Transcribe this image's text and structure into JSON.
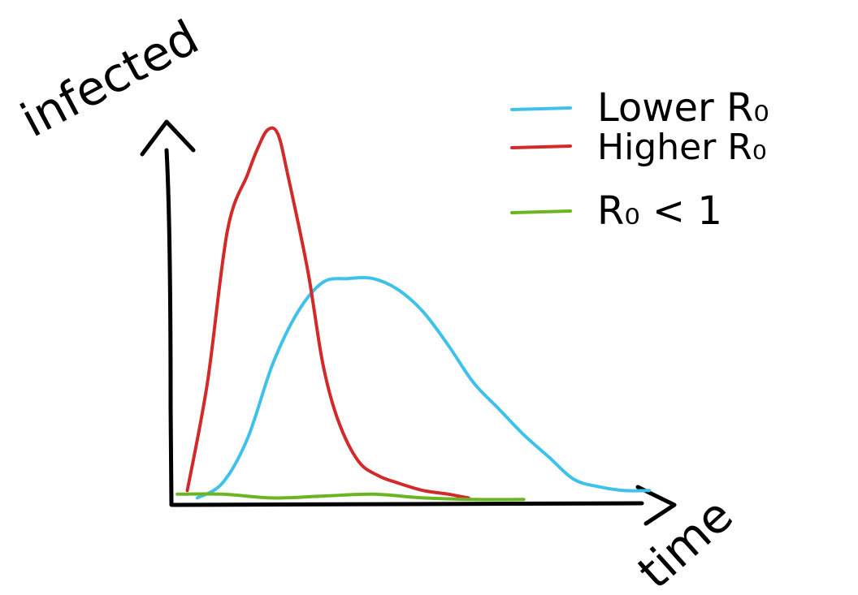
{
  "chart_data": {
    "type": "line",
    "xlabel": "time",
    "ylabel": "infected",
    "grid": false,
    "legend_position": "top-right",
    "xlim": [
      0,
      100
    ],
    "ylim": [
      0,
      100
    ],
    "series": [
      {
        "name": "Lower R₀",
        "color": "#3fc1ea",
        "x": [
          5,
          10,
          15,
          20,
          25,
          30,
          35,
          40,
          45,
          50,
          55,
          60,
          65,
          70,
          75,
          80,
          85,
          90,
          95
        ],
        "y": [
          1,
          5,
          17,
          37,
          51,
          59,
          60,
          60,
          57,
          51,
          42,
          32,
          25,
          18,
          12,
          6,
          4,
          3,
          3
        ]
      },
      {
        "name": "Higher R₀",
        "color": "#d22a2a",
        "x": [
          3,
          7,
          11,
          15,
          17,
          19,
          21,
          23,
          27,
          30,
          33,
          37,
          41,
          45,
          50,
          55,
          59
        ],
        "y": [
          3,
          32,
          73,
          88,
          95,
          100,
          99,
          88,
          62,
          37,
          22,
          11,
          7,
          5,
          3,
          2,
          1
        ]
      },
      {
        "name": "R₀ < 1",
        "color": "#6ab521",
        "x": [
          1,
          10,
          20,
          30,
          40,
          50,
          60,
          70
        ],
        "y": [
          2,
          2,
          1,
          1.5,
          2,
          1,
          0.6,
          0.6
        ]
      }
    ]
  }
}
